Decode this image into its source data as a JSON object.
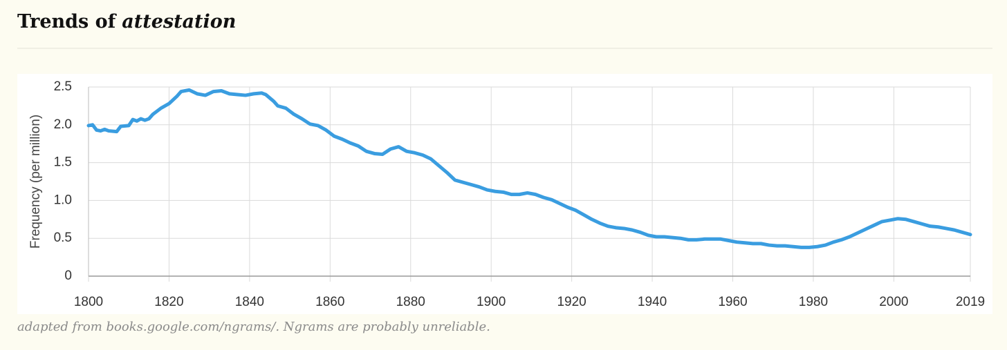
{
  "chart_data": {
    "type": "line",
    "title_prefix": "Trends of",
    "title_emphasis": "attestation",
    "ylabel": "Frequency (per million)",
    "note": "adapted from books.google.com/ngrams/. Ngrams are probably unreliable.",
    "x": [
      1800,
      1801,
      1802,
      1803,
      1804,
      1805,
      1807,
      1808,
      1810,
      1811,
      1812,
      1813,
      1814,
      1815,
      1816,
      1818,
      1820,
      1822,
      1823,
      1825,
      1827,
      1829,
      1831,
      1833,
      1835,
      1837,
      1839,
      1841,
      1843,
      1844,
      1846,
      1847,
      1849,
      1851,
      1853,
      1855,
      1857,
      1859,
      1861,
      1863,
      1865,
      1867,
      1869,
      1871,
      1873,
      1875,
      1877,
      1879,
      1881,
      1883,
      1885,
      1887,
      1889,
      1891,
      1893,
      1895,
      1897,
      1899,
      1901,
      1903,
      1905,
      1907,
      1909,
      1911,
      1913,
      1915,
      1917,
      1919,
      1921,
      1923,
      1925,
      1927,
      1929,
      1931,
      1933,
      1935,
      1937,
      1939,
      1941,
      1943,
      1945,
      1947,
      1949,
      1951,
      1953,
      1955,
      1957,
      1959,
      1961,
      1963,
      1965,
      1967,
      1969,
      1971,
      1973,
      1975,
      1977,
      1979,
      1981,
      1983,
      1985,
      1987,
      1989,
      1991,
      1993,
      1995,
      1997,
      1999,
      2001,
      2003,
      2005,
      2007,
      2009,
      2011,
      2013,
      2015,
      2017,
      2019
    ],
    "series": [
      {
        "name": "attestation",
        "color": "#3a9de0",
        "values": [
          1.99,
          2.0,
          1.93,
          1.92,
          1.94,
          1.92,
          1.91,
          1.98,
          1.99,
          2.07,
          2.05,
          2.08,
          2.06,
          2.08,
          2.14,
          2.22,
          2.28,
          2.38,
          2.44,
          2.46,
          2.41,
          2.39,
          2.44,
          2.45,
          2.41,
          2.4,
          2.39,
          2.41,
          2.42,
          2.4,
          2.31,
          2.25,
          2.22,
          2.14,
          2.08,
          2.01,
          1.99,
          1.93,
          1.85,
          1.81,
          1.76,
          1.72,
          1.65,
          1.62,
          1.61,
          1.68,
          1.71,
          1.65,
          1.63,
          1.6,
          1.55,
          1.46,
          1.37,
          1.27,
          1.24,
          1.21,
          1.18,
          1.14,
          1.12,
          1.11,
          1.08,
          1.08,
          1.1,
          1.08,
          1.04,
          1.01,
          0.96,
          0.91,
          0.87,
          0.81,
          0.75,
          0.7,
          0.66,
          0.64,
          0.63,
          0.61,
          0.58,
          0.54,
          0.52,
          0.52,
          0.51,
          0.5,
          0.48,
          0.48,
          0.49,
          0.49,
          0.49,
          0.47,
          0.45,
          0.44,
          0.43,
          0.43,
          0.41,
          0.4,
          0.4,
          0.39,
          0.38,
          0.38,
          0.39,
          0.41,
          0.45,
          0.48,
          0.52,
          0.57,
          0.62,
          0.67,
          0.72,
          0.74,
          0.76,
          0.75,
          0.72,
          0.69,
          0.66,
          0.65,
          0.63,
          0.61,
          0.58,
          0.55
        ]
      }
    ],
    "xlim": [
      1800,
      2019
    ],
    "xticks": [
      1800,
      1820,
      1840,
      1860,
      1880,
      1900,
      1920,
      1940,
      1960,
      1980,
      2000,
      2019
    ],
    "ylim": [
      0,
      2.5
    ],
    "yticks": [
      0,
      0.5,
      {
        "value": 1,
        "label": "1.0"
      },
      1.5,
      {
        "value": 2,
        "label": "2.0"
      },
      2.5
    ],
    "grid": true
  }
}
